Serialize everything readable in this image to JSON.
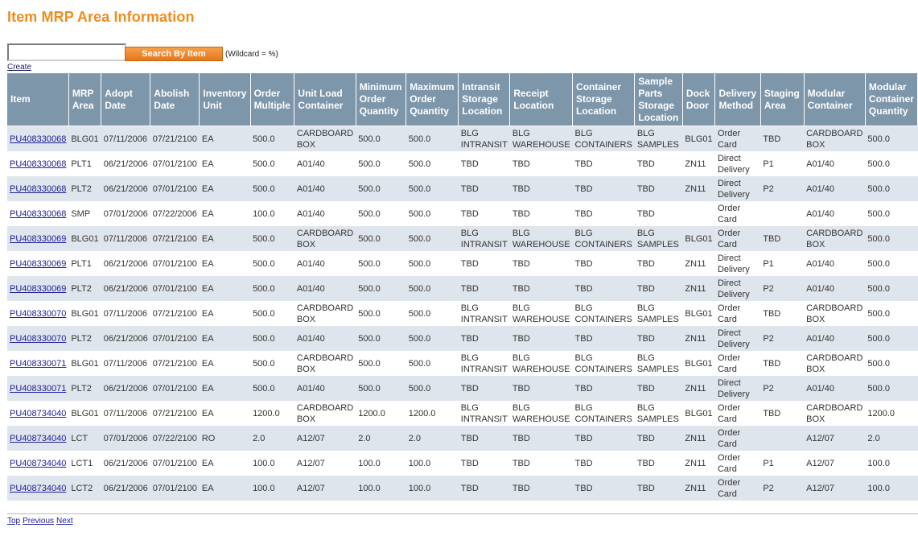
{
  "page": {
    "title": "Item MRP Area Information"
  },
  "search": {
    "value": "",
    "button_label": "Search By Item",
    "note": "(Wildcard = %)"
  },
  "create_label": "Create",
  "table": {
    "columns": [
      "Item",
      "MRP Area",
      "Adopt Date",
      "Abolish Date",
      "Inventory Unit",
      "Order Multiple",
      "Unit Load Container",
      "Minimum Order Quantity",
      "Maximum Order Quantity",
      "Intransit Storage Location",
      "Receipt Location",
      "Container Storage Location",
      "Sample Parts Storage Location",
      "Dock Door",
      "Delivery Method",
      "Staging Area",
      "Modular Container",
      "Modular Container Quantity"
    ],
    "rows": [
      [
        "PU408330068",
        "BLG01",
        "07/11/2006",
        "07/21/2100",
        "EA",
        "500.0",
        "CARDBOARD BOX",
        "500.0",
        "500.0",
        "BLG INTRANSIT",
        "BLG WAREHOUSE",
        "BLG CONTAINERS",
        "BLG SAMPLES",
        "BLG01",
        "Order Card",
        "TBD",
        "CARDBOARD BOX",
        "500.0"
      ],
      [
        "PU408330068",
        "PLT1",
        "06/21/2006",
        "07/01/2100",
        "EA",
        "500.0",
        "A01/40",
        "500.0",
        "500.0",
        "TBD",
        "TBD",
        "TBD",
        "TBD",
        "ZN11",
        "Direct Delivery",
        "P1",
        "A01/40",
        "500.0"
      ],
      [
        "PU408330068",
        "PLT2",
        "06/21/2006",
        "07/01/2100",
        "EA",
        "500.0",
        "A01/40",
        "500.0",
        "500.0",
        "TBD",
        "TBD",
        "TBD",
        "TBD",
        "ZN11",
        "Direct Delivery",
        "P2",
        "A01/40",
        "500.0"
      ],
      [
        "PU408330068",
        "SMP",
        "07/01/2006",
        "07/22/2006",
        "EA",
        "100.0",
        "A01/40",
        "500.0",
        "500.0",
        "TBD",
        "TBD",
        "TBD",
        "TBD",
        "",
        "Order Card",
        "",
        "A01/40",
        "500.0"
      ],
      [
        "PU408330069",
        "BLG01",
        "07/11/2006",
        "07/21/2100",
        "EA",
        "500.0",
        "CARDBOARD BOX",
        "500.0",
        "500.0",
        "BLG INTRANSIT",
        "BLG WAREHOUSE",
        "BLG CONTAINERS",
        "BLG SAMPLES",
        "BLG01",
        "Order Card",
        "TBD",
        "CARDBOARD BOX",
        "500.0"
      ],
      [
        "PU408330069",
        "PLT1",
        "06/21/2006",
        "07/01/2100",
        "EA",
        "500.0",
        "A01/40",
        "500.0",
        "500.0",
        "TBD",
        "TBD",
        "TBD",
        "TBD",
        "ZN11",
        "Direct Delivery",
        "P1",
        "A01/40",
        "500.0"
      ],
      [
        "PU408330069",
        "PLT2",
        "06/21/2006",
        "07/01/2100",
        "EA",
        "500.0",
        "A01/40",
        "500.0",
        "500.0",
        "TBD",
        "TBD",
        "TBD",
        "TBD",
        "ZN11",
        "Direct Delivery",
        "P2",
        "A01/40",
        "500.0"
      ],
      [
        "PU408330070",
        "BLG01",
        "07/11/2006",
        "07/21/2100",
        "EA",
        "500.0",
        "CARDBOARD BOX",
        "500.0",
        "500.0",
        "BLG INTRANSIT",
        "BLG WAREHOUSE",
        "BLG CONTAINERS",
        "BLG SAMPLES",
        "BLG01",
        "Order Card",
        "TBD",
        "CARDBOARD BOX",
        "500.0"
      ],
      [
        "PU408330070",
        "PLT2",
        "06/21/2006",
        "07/01/2100",
        "EA",
        "500.0",
        "A01/40",
        "500.0",
        "500.0",
        "TBD",
        "TBD",
        "TBD",
        "TBD",
        "ZN11",
        "Direct Delivery",
        "P2",
        "A01/40",
        "500.0"
      ],
      [
        "PU408330071",
        "BLG01",
        "07/11/2006",
        "07/21/2100",
        "EA",
        "500.0",
        "CARDBOARD BOX",
        "500.0",
        "500.0",
        "BLG INTRANSIT",
        "BLG WAREHOUSE",
        "BLG CONTAINERS",
        "BLG SAMPLES",
        "BLG01",
        "Order Card",
        "TBD",
        "CARDBOARD BOX",
        "500.0"
      ],
      [
        "PU408330071",
        "PLT2",
        "06/21/2006",
        "07/01/2100",
        "EA",
        "500.0",
        "A01/40",
        "500.0",
        "500.0",
        "TBD",
        "TBD",
        "TBD",
        "TBD",
        "ZN11",
        "Direct Delivery",
        "P2",
        "A01/40",
        "500.0"
      ],
      [
        "PU408734040",
        "BLG01",
        "07/11/2006",
        "07/21/2100",
        "EA",
        "1200.0",
        "CARDBOARD BOX",
        "1200.0",
        "1200.0",
        "BLG INTRANSIT",
        "BLG WAREHOUSE",
        "BLG CONTAINERS",
        "BLG SAMPLES",
        "BLG01",
        "Order Card",
        "TBD",
        "CARDBOARD BOX",
        "1200.0"
      ],
      [
        "PU408734040",
        "LCT",
        "07/01/2006",
        "07/22/2100",
        "RO",
        "2.0",
        "A12/07",
        "2.0",
        "2.0",
        "TBD",
        "TBD",
        "TBD",
        "TBD",
        "ZN11",
        "Order Card",
        "",
        "A12/07",
        "2.0"
      ],
      [
        "PU408734040",
        "LCT1",
        "06/21/2006",
        "07/01/2100",
        "EA",
        "100.0",
        "A12/07",
        "100.0",
        "100.0",
        "TBD",
        "TBD",
        "TBD",
        "TBD",
        "ZN11",
        "Order Card",
        "P1",
        "A12/07",
        "100.0"
      ],
      [
        "PU408734040",
        "LCT2",
        "06/21/2006",
        "07/01/2100",
        "EA",
        "100.0",
        "A12/07",
        "100.0",
        "100.0",
        "TBD",
        "TBD",
        "TBD",
        "TBD",
        "ZN11",
        "Order Card",
        "P2",
        "A12/07",
        "100.0"
      ]
    ]
  },
  "footer": {
    "top": "Top",
    "previous": "Previous",
    "next": "Next"
  },
  "colors": {
    "title": "#f08c1c",
    "header_bg": "#7d96aa",
    "row_alt": "#dfe5ec",
    "link": "#20209a"
  }
}
